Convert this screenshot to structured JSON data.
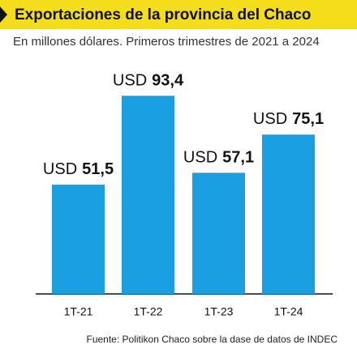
{
  "chart_data": {
    "type": "bar",
    "title": "Exportaciones de la provincia del Chaco",
    "subtitle": "En millones dólares.  Primeros trimestres de 2021 a 2024",
    "source": "Fuente: Politikon Chaco sobre la dase de datos de INDEC",
    "value_prefix": "USD",
    "categories": [
      "1T-21",
      "1T-22",
      "1T-23",
      "1T-24"
    ],
    "values": [
      51.5,
      93.4,
      57.1,
      75.1
    ],
    "value_labels": [
      "51,5",
      "93,4",
      "57,1",
      "75,1"
    ],
    "color": "#1aa0e2",
    "ylim": [
      0,
      100
    ]
  }
}
